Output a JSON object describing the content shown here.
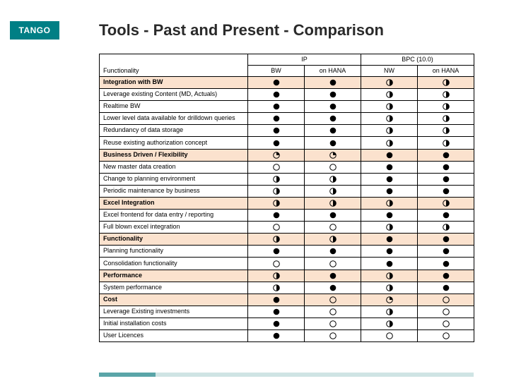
{
  "logo_text": "TANGO",
  "title": "Tools - Past and Present - Comparison",
  "colors": {
    "brand": "#007f85",
    "section_bg": "#fbe2ce",
    "footer_dark": "#5aa5a8",
    "footer_light": "#cfe4e4",
    "border": "#000000"
  },
  "header": {
    "func_label": "Functionality",
    "group1": "IP",
    "group2": "BPC (10.0)",
    "cols": [
      "BW",
      "on HANA",
      "NW",
      "on HANA"
    ]
  },
  "glyph_legend": {
    "full": 4,
    "three_quarter": 3,
    "half": 2,
    "quarter": 1,
    "empty": 0
  },
  "rows": [
    {
      "section": true,
      "label": "Integration with BW",
      "v": [
        4,
        4,
        2,
        2
      ]
    },
    {
      "label": "Leverage existing Content (MD, Actuals)",
      "v": [
        4,
        4,
        2,
        2
      ]
    },
    {
      "label": "Realtime BW",
      "v": [
        4,
        4,
        2,
        2
      ]
    },
    {
      "label": "Lower level data available for drilldown queries",
      "v": [
        4,
        4,
        2,
        2
      ]
    },
    {
      "label": "Redundancy of data storage",
      "v": [
        4,
        4,
        2,
        2
      ]
    },
    {
      "label": "Reuse existing authorization concept",
      "v": [
        4,
        4,
        2,
        2
      ]
    },
    {
      "section": true,
      "label": "Business Driven / Flexibility",
      "v": [
        1,
        1,
        4,
        4
      ]
    },
    {
      "label": "New master data creation",
      "v": [
        0,
        0,
        4,
        4
      ]
    },
    {
      "label": "Change to planning environment",
      "v": [
        2,
        2,
        4,
        4
      ]
    },
    {
      "label": "Periodic maintenance by business",
      "v": [
        2,
        2,
        4,
        4
      ]
    },
    {
      "section": true,
      "label": "Excel Integration",
      "v": [
        2,
        2,
        2,
        2
      ]
    },
    {
      "label": "Excel frontend for data entry / reporting",
      "v": [
        4,
        4,
        4,
        4
      ]
    },
    {
      "label": "Full blown excel integration",
      "v": [
        0,
        0,
        2,
        2
      ]
    },
    {
      "section": true,
      "label": "Functionality",
      "v": [
        2,
        2,
        4,
        4
      ]
    },
    {
      "label": "Planning functionality",
      "v": [
        4,
        4,
        4,
        4
      ]
    },
    {
      "label": "Consolidation functionality",
      "v": [
        0,
        0,
        4,
        4
      ]
    },
    {
      "section": true,
      "label": "Performance",
      "v": [
        2,
        4,
        2,
        4
      ]
    },
    {
      "label": "System performance",
      "v": [
        2,
        4,
        2,
        4
      ]
    },
    {
      "section": true,
      "label": "Cost",
      "v": [
        4,
        0,
        1,
        0
      ]
    },
    {
      "label": "Leverage Existing investments",
      "v": [
        4,
        0,
        2,
        0
      ]
    },
    {
      "label": "Initial installation costs",
      "v": [
        4,
        0,
        2,
        0
      ]
    },
    {
      "label": "User Licences",
      "v": [
        4,
        0,
        0,
        0
      ]
    }
  ]
}
